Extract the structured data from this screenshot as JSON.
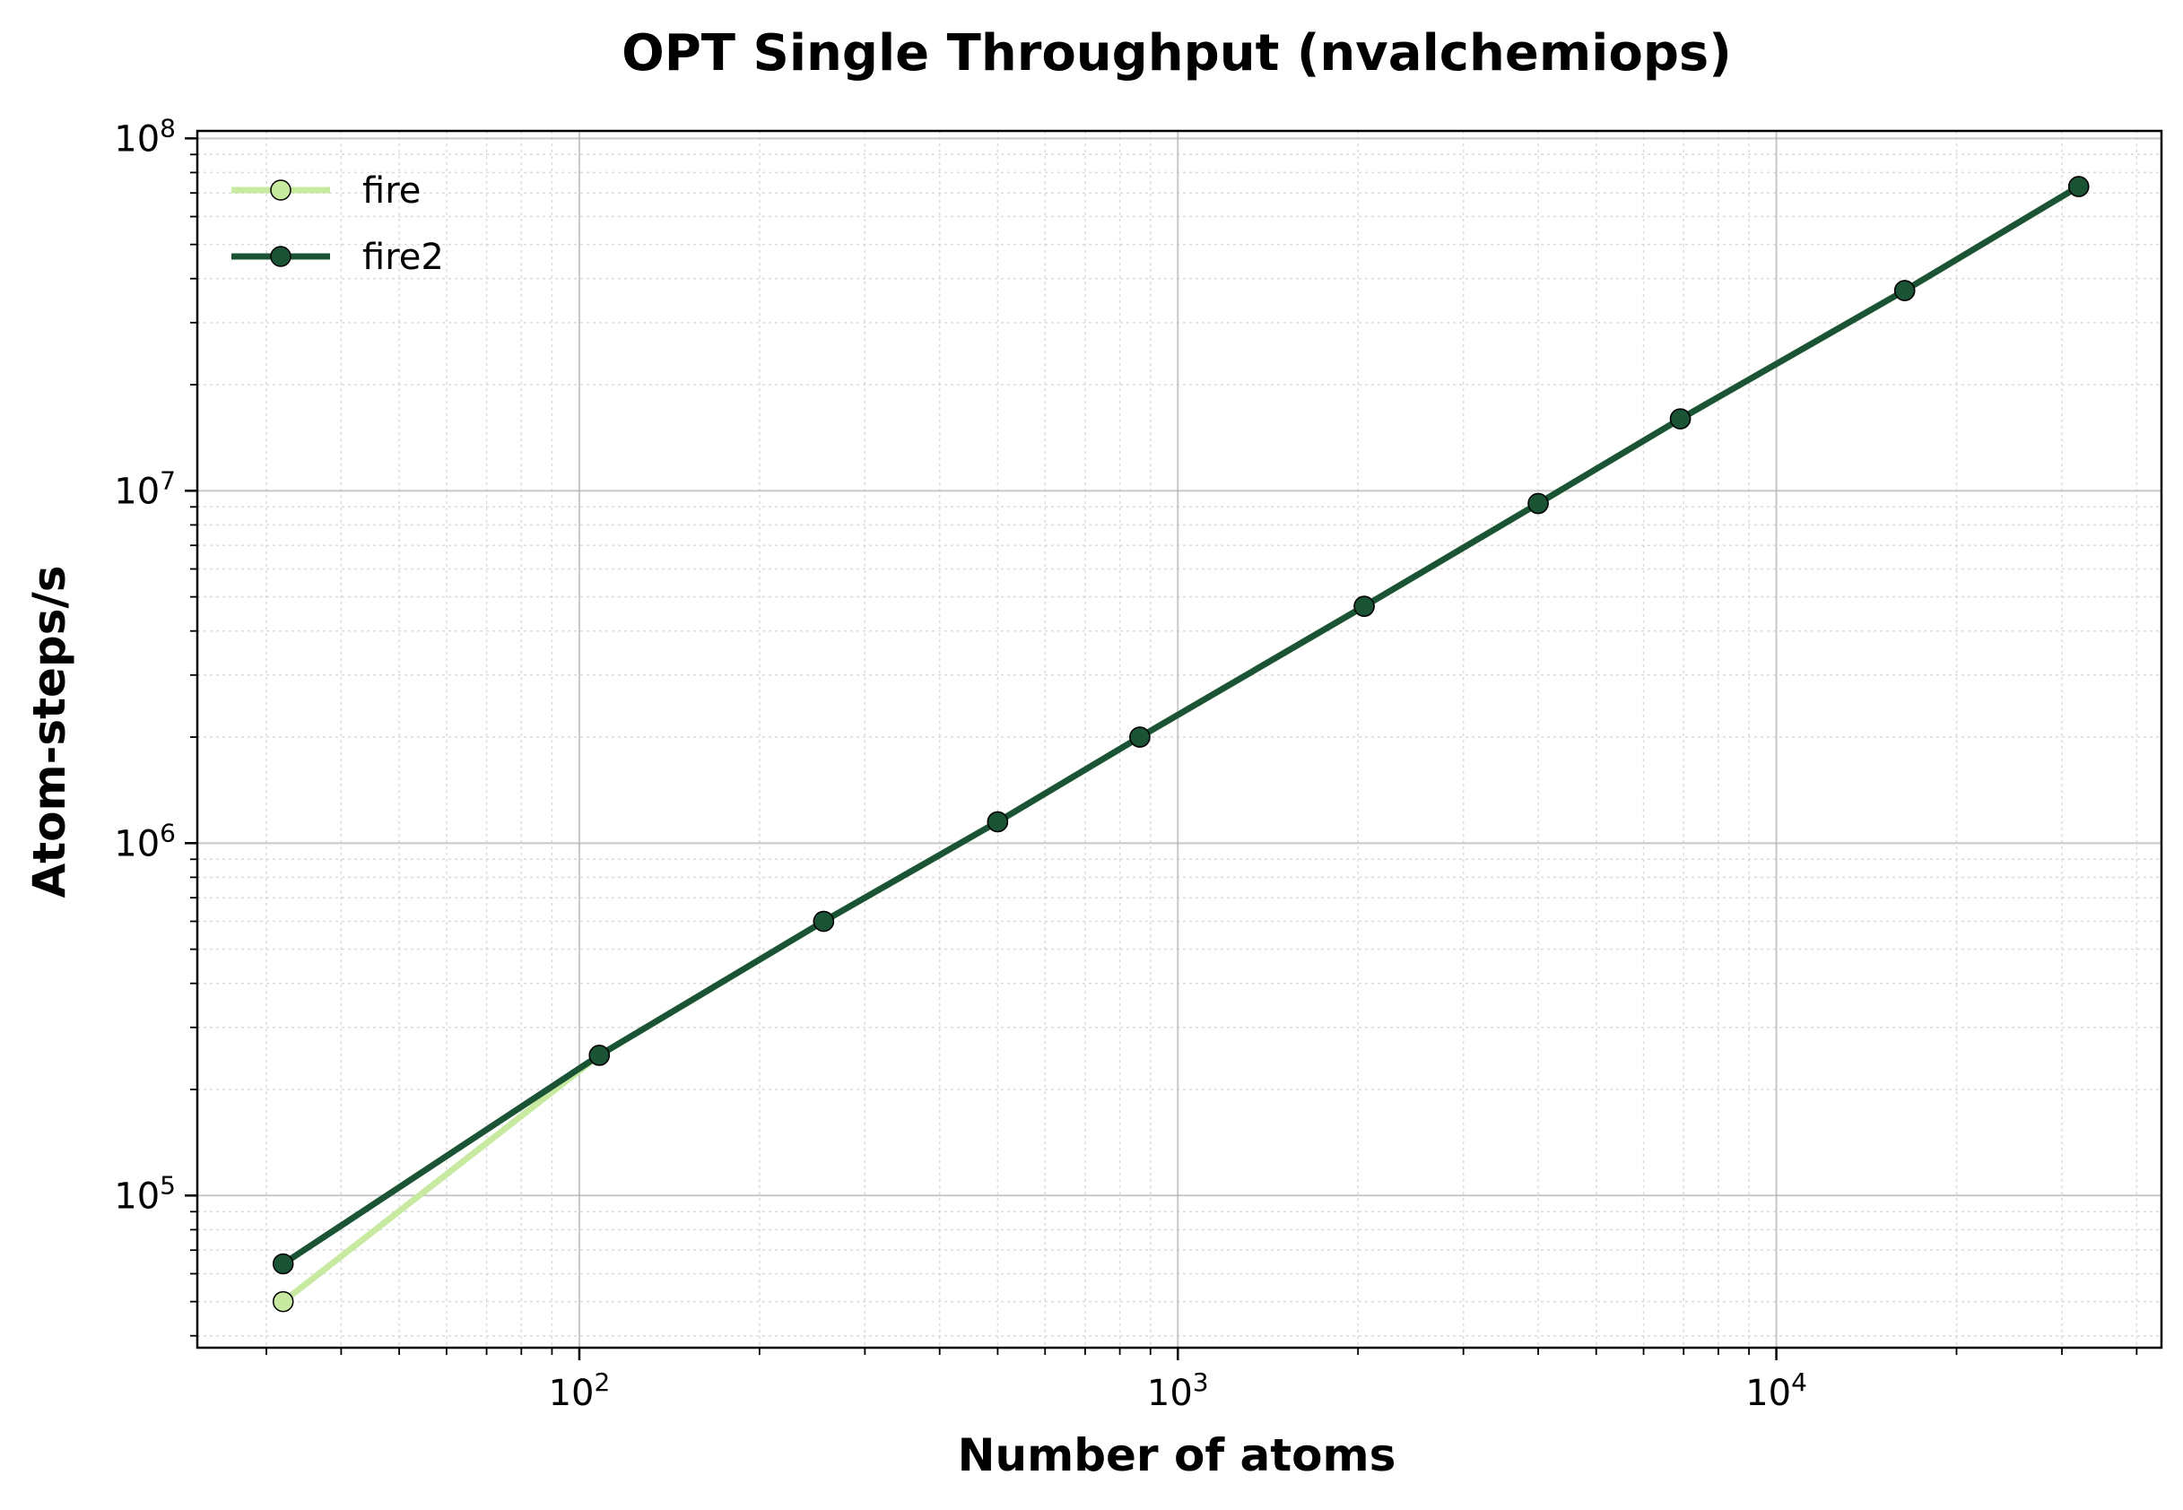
{
  "chart_data": {
    "type": "line",
    "title": "OPT Single Throughput (nvalchemiops)",
    "xlabel": "Number of atoms",
    "ylabel": "Atom-steps/s",
    "xscale": "log",
    "yscale": "log",
    "xlim": [
      23,
      44000
    ],
    "ylim": [
      37000,
      105000000
    ],
    "x_ticks": [
      {
        "value": 100,
        "base": "10",
        "exp": "2"
      },
      {
        "value": 1000,
        "base": "10",
        "exp": "3"
      },
      {
        "value": 10000,
        "base": "10",
        "exp": "4"
      }
    ],
    "y_ticks": [
      {
        "value": 100000,
        "base": "10",
        "exp": "5"
      },
      {
        "value": 1000000,
        "base": "10",
        "exp": "6"
      },
      {
        "value": 10000000,
        "base": "10",
        "exp": "7"
      },
      {
        "value": 100000000,
        "base": "10",
        "exp": "8"
      }
    ],
    "grid": true,
    "legend_position": "top-left",
    "series": [
      {
        "name": "fire",
        "color": "#c7e9a0",
        "points": [
          [
            32,
            50000
          ],
          [
            108,
            250000
          ],
          [
            256,
            600000
          ],
          [
            500,
            1150000
          ],
          [
            864,
            2000000
          ],
          [
            2048,
            4700000
          ],
          [
            4000,
            9200000
          ],
          [
            6912,
            16000000
          ],
          [
            16384,
            37000000
          ],
          [
            32000,
            73000000
          ]
        ]
      },
      {
        "name": "fire2",
        "color": "#1a5434",
        "points": [
          [
            32,
            64000
          ],
          [
            108,
            250000
          ],
          [
            256,
            600000
          ],
          [
            500,
            1150000
          ],
          [
            864,
            2000000
          ],
          [
            2048,
            4700000
          ],
          [
            4000,
            9200000
          ],
          [
            6912,
            16000000
          ],
          [
            16384,
            37000000
          ],
          [
            32000,
            73000000
          ]
        ]
      }
    ]
  }
}
